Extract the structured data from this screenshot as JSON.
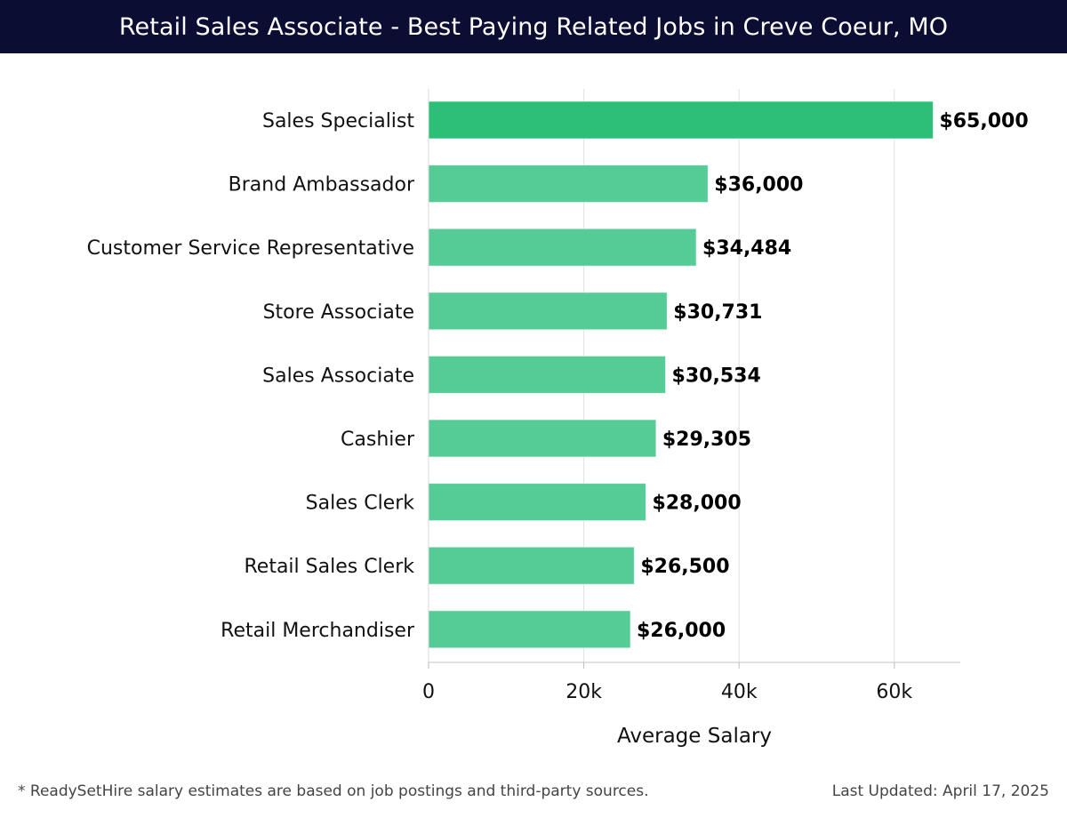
{
  "header": {
    "title": "Retail Sales Associate - Best Paying Related Jobs in Creve Coeur, MO"
  },
  "footer": {
    "note": "* ReadySetHire salary estimates are based on job postings and third-party sources.",
    "updated": "Last Updated: April 17, 2025"
  },
  "colors": {
    "title_bg": "#0b0d33",
    "highlight_bar": "#2bbf78",
    "bar": "#55cc95",
    "grid": "#e0e0e0"
  },
  "chart_data": {
    "type": "bar",
    "orientation": "horizontal",
    "title": "Retail Sales Associate - Best Paying Related Jobs in Creve Coeur, MO",
    "xlabel": "Average Salary",
    "ylabel": "",
    "categories": [
      "Sales Specialist",
      "Brand Ambassador",
      "Customer Service Representative",
      "Store Associate",
      "Sales Associate",
      "Cashier",
      "Sales Clerk",
      "Retail Sales Clerk",
      "Retail Merchandiser"
    ],
    "values": [
      65000,
      36000,
      34484,
      30731,
      30534,
      29305,
      28000,
      26500,
      26000
    ],
    "value_labels": [
      "$65,000",
      "$36,000",
      "$34,484",
      "$30,731",
      "$30,534",
      "$29,305",
      "$28,000",
      "$26,500",
      "$26,000"
    ],
    "xticks": [
      0,
      20000,
      40000,
      60000
    ],
    "xtick_labels": [
      "0",
      "20k",
      "40k",
      "60k"
    ],
    "xlim": [
      0,
      68500
    ],
    "grid": true,
    "highlight_index": 0
  }
}
